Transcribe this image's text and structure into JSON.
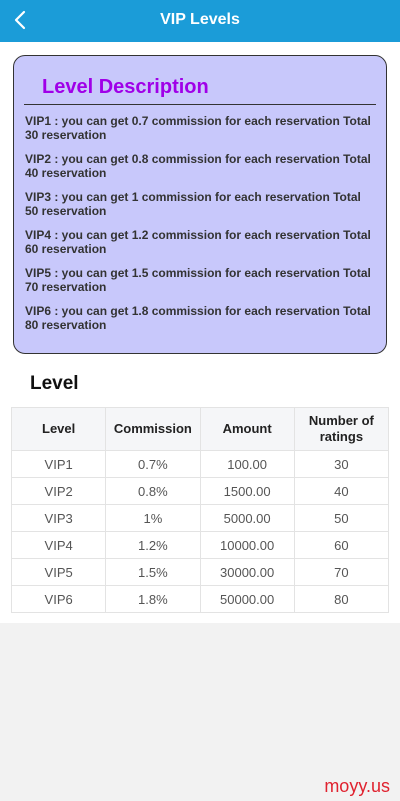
{
  "header": {
    "title": "VIP Levels",
    "back_icon": "chevron-left-icon",
    "background": "#1b9cd8"
  },
  "description": {
    "title": "Level Description",
    "title_color": "#a000e8",
    "card_color": "#c8c8fb",
    "items": [
      "VIP1 : you can get 0.7 commission for each reservation Total 30 reservation",
      "VIP2 : you can get 0.8 commission for each reservation Total 40 reservation",
      "VIP3 : you can get 1 commission for each reservation Total 50 reservation",
      "VIP4 : you can get 1.2 commission for each reservation Total 60 reservation",
      "VIP5 : you can get 1.5 commission for each reservation Total 70 reservation",
      "VIP6 : you can get 1.8 commission for each reservation Total 80 reservation"
    ]
  },
  "level_table": {
    "section_title": "Level",
    "columns": [
      "Level",
      "Commission",
      "Amount",
      "Number of ratings"
    ],
    "rows": [
      [
        "VIP1",
        "0.7%",
        "100.00",
        "30"
      ],
      [
        "VIP2",
        "0.8%",
        "1500.00",
        "40"
      ],
      [
        "VIP3",
        "1%",
        "5000.00",
        "50"
      ],
      [
        "VIP4",
        "1.2%",
        "10000.00",
        "60"
      ],
      [
        "VIP5",
        "1.5%",
        "30000.00",
        "70"
      ],
      [
        "VIP6",
        "1.8%",
        "50000.00",
        "80"
      ]
    ]
  },
  "watermark": {
    "text": "moyy.us",
    "color": "#e0222f"
  }
}
